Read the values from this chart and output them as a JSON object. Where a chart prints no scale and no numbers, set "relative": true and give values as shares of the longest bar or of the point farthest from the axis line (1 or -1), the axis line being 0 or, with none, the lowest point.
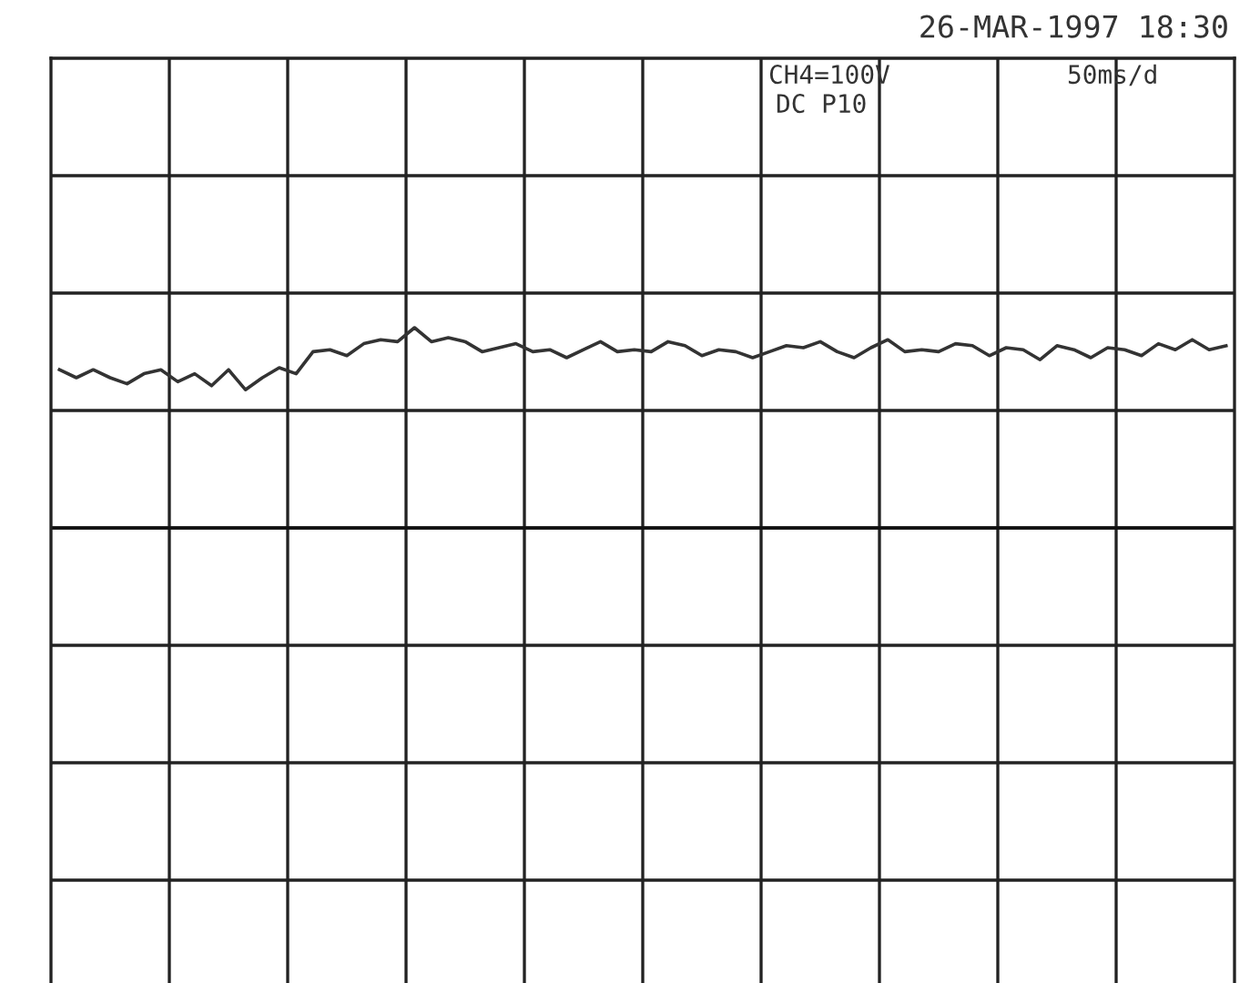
{
  "chart_data": {
    "type": "line",
    "relative": true,
    "title": "26-MAR-1997 18:30",
    "annotations": [
      "CH4=100V",
      "50ms/d",
      "DC P10"
    ],
    "grid": true,
    "marker": "none",
    "line_style": "solid",
    "categories": [
      null,
      null,
      null,
      null,
      null,
      null,
      null,
      null,
      null,
      null,
      null,
      null,
      null,
      null,
      null,
      null,
      null,
      null,
      null,
      null,
      null,
      null,
      null,
      null,
      null,
      null,
      null,
      null,
      null,
      null,
      null,
      null,
      null,
      null,
      null,
      null,
      null,
      null,
      null,
      null,
      null,
      null,
      null,
      null,
      null,
      null,
      null,
      null,
      null,
      null,
      null,
      null,
      null,
      null,
      null,
      null,
      null,
      null,
      null,
      null,
      null,
      null,
      null,
      null,
      null,
      null,
      null,
      null,
      null,
      null
    ],
    "series": [
      {
        "color": "#333333",
        "values": [
          0.79,
          0.75,
          0.79,
          0.75,
          0.72,
          0.77,
          0.79,
          0.73,
          0.77,
          0.71,
          0.79,
          0.69,
          0.75,
          0.8,
          0.77,
          0.88,
          0.89,
          0.86,
          0.92,
          0.94,
          0.93,
          1,
          0.93,
          0.95,
          0.93,
          0.88,
          0.9,
          0.92,
          0.88,
          0.89,
          0.85,
          0.89,
          0.93,
          0.88,
          0.89,
          0.88,
          0.93,
          0.91,
          0.86,
          0.89,
          0.88,
          0.85,
          0.88,
          0.91,
          0.9,
          0.93,
          0.88,
          0.85,
          0.9,
          0.94,
          0.88,
          0.89,
          0.88,
          0.92,
          0.91,
          0.86,
          0.9,
          0.89,
          0.84,
          0.91,
          0.89,
          0.85,
          0.9,
          0.89,
          0.86,
          0.92,
          0.89,
          0.94,
          0.89,
          0.91
        ]
      }
    ]
  }
}
